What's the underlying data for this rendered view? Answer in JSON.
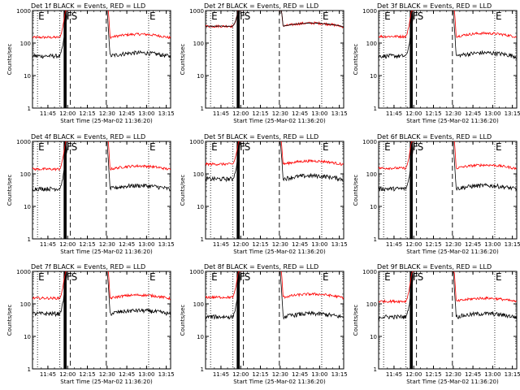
{
  "chart_data": {
    "type": "line",
    "scale": "log",
    "ylim": [
      1,
      1000
    ],
    "ylabel": "Counts/sec",
    "yticks": [
      "1000",
      "100",
      "10",
      "1"
    ],
    "xlabel": "Start Time (25-Mar-02 11:36:20)",
    "xrange_minutes": [
      -3,
      102
    ],
    "xticks": [
      {
        "label": "11:45",
        "t": 8.7
      },
      {
        "label": "12:00",
        "t": 23.7
      },
      {
        "label": "12:15",
        "t": 38.7
      },
      {
        "label": "12:30",
        "t": 53.7
      },
      {
        "label": "12:45",
        "t": 68.7
      },
      {
        "label": "13:00",
        "t": 83.7
      },
      {
        "label": "13:15",
        "t": 98.7
      }
    ],
    "colors": {
      "events": "#000000",
      "lld": "#ff0000"
    },
    "panels": [
      {
        "title": "Det 1f BLACK = Events, RED = LLD",
        "lld_level": 150,
        "events_level": 40,
        "lld_rise": 1.0,
        "events_rise": 1.0,
        "flat": false
      },
      {
        "title": "Det 2f BLACK = Events, RED = LLD",
        "lld_level": 330,
        "events_level": 330,
        "lld_rise": 0.6,
        "events_rise": 0.6,
        "flat": true
      },
      {
        "title": "Det 3f BLACK = Events, RED = LLD",
        "lld_level": 160,
        "events_level": 40,
        "lld_rise": 1.0,
        "events_rise": 1.0,
        "flat": false
      },
      {
        "title": "Det 4f BLACK = Events, RED = LLD",
        "lld_level": 140,
        "events_level": 35,
        "lld_rise": 1.0,
        "events_rise": 1.0,
        "flat": false
      },
      {
        "title": "Det 5f BLACK = Events, RED = LLD",
        "lld_level": 200,
        "events_level": 70,
        "lld_rise": 0.8,
        "events_rise": 0.9,
        "flat": false
      },
      {
        "title": "Det 6f BLACK = Events, RED = LLD",
        "lld_level": 150,
        "events_level": 35,
        "lld_rise": 1.0,
        "events_rise": 1.0,
        "flat": false
      },
      {
        "title": "Det 7f BLACK = Events, RED = LLD",
        "lld_level": 150,
        "events_level": 50,
        "lld_rise": 1.0,
        "events_rise": 1.0,
        "flat": false
      },
      {
        "title": "Det 8f BLACK = Events, RED = LLD",
        "lld_level": 160,
        "events_level": 40,
        "lld_rise": 1.0,
        "events_rise": 1.0,
        "flat": false
      },
      {
        "title": "Det 9f BLACK = Events, RED = LLD",
        "lld_level": 120,
        "events_level": 40,
        "lld_rise": 1.0,
        "events_rise": 1.0,
        "flat": false
      }
    ],
    "markers": [
      {
        "t": 0.8,
        "style": "dotted",
        "label": "E"
      },
      {
        "t": 17.8,
        "style": "dotted",
        "label": ""
      },
      {
        "t": 21.3,
        "style": "solid",
        "label": ""
      },
      {
        "t": 22.3,
        "style": "solid",
        "label": "F"
      },
      {
        "t": 25.8,
        "style": "dashed",
        "label": "S"
      },
      {
        "t": 53.1,
        "style": "dashed",
        "label": ""
      },
      {
        "t": 85.3,
        "style": "dotted",
        "label": "E"
      }
    ]
  }
}
